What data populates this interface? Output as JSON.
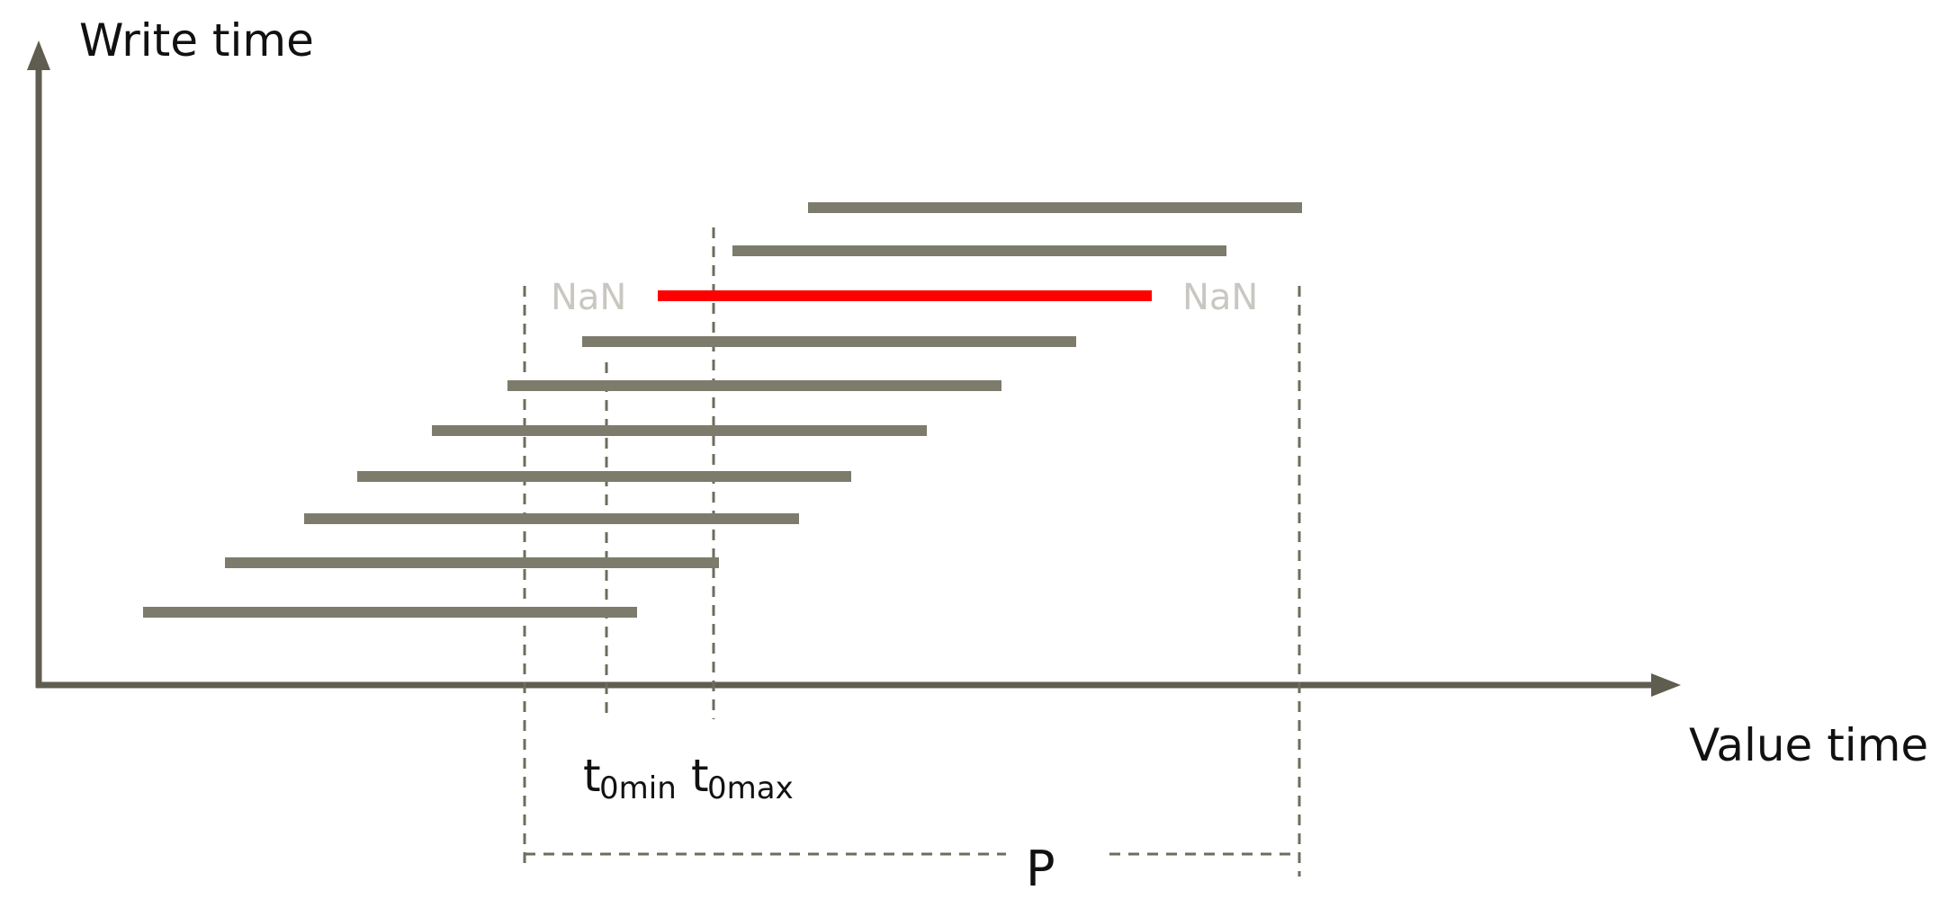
{
  "labels": {
    "y_axis": "Write time",
    "x_axis": "Value time",
    "nan_left": "NaN",
    "nan_right": "NaN",
    "t0min_base": "t",
    "t0min_sub": "0min",
    "t0max_base": "t",
    "t0max_sub": "0max",
    "period": "P"
  },
  "colors": {
    "axis": "#5f5d50",
    "bar": "#7d7b6b",
    "highlight": "#ff0000",
    "nan_text": "#c9c7c1",
    "dashed": "#6e6c5e"
  }
}
